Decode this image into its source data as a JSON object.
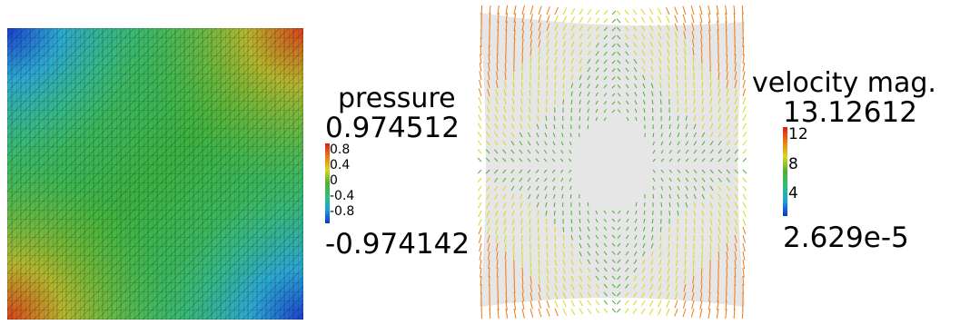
{
  "pressure_legend": {
    "title": "pressure",
    "max": "0.974512",
    "min": "-0.974142",
    "ticks": [
      "0.8",
      "0.4",
      "0",
      "-0.4",
      "-0.8"
    ]
  },
  "velocity_legend": {
    "title": "velocity mag.",
    "max": "13.12612",
    "min": "2.629e-5",
    "ticks": [
      "12",
      "8",
      "4"
    ]
  },
  "colors": {
    "colormap": [
      "#1133cc",
      "#1aa0e0",
      "#2fc07a",
      "#4caf34",
      "#d8d820",
      "#ee7a18",
      "#d62010"
    ],
    "background": "#ffffff",
    "mesh_line": "#000000",
    "arrow_background": "#e6e6e6"
  }
}
